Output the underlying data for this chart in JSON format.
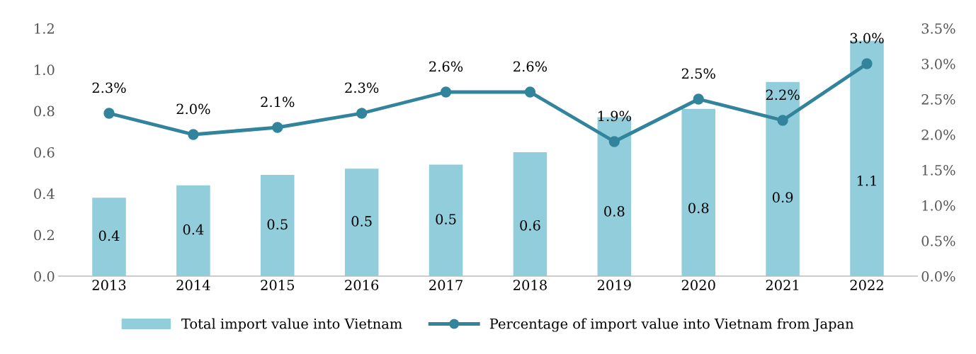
{
  "chart_data": {
    "type": "bar",
    "categories": [
      "2013",
      "2014",
      "2015",
      "2016",
      "2017",
      "2018",
      "2019",
      "2020",
      "2021",
      "2022"
    ],
    "series": [
      {
        "name": "Total import value into Vietnam",
        "color": "#92cddc",
        "values": [
          0.38,
          0.44,
          0.49,
          0.52,
          0.54,
          0.6,
          0.77,
          0.81,
          0.94,
          1.14
        ],
        "value_labels": [
          "0.4",
          "0.4",
          "0.5",
          "0.5",
          "0.5",
          "0.6",
          "0.8",
          "0.8",
          "0.9",
          "1.1"
        ]
      },
      {
        "name": "Percentage of import value into Vietnam from Japan",
        "type": "line",
        "axis": "y2",
        "color": "#31849b",
        "marker": "circle",
        "values": [
          2.3,
          2.0,
          2.1,
          2.3,
          2.6,
          2.6,
          1.9,
          2.5,
          2.2,
          3.0
        ],
        "value_labels": [
          "2.3%",
          "2.0%",
          "2.1%",
          "2.3%",
          "2.6%",
          "2.6%",
          "1.9%",
          "2.5%",
          "2.2%",
          "3.0%"
        ]
      }
    ],
    "ylim": [
      0,
      1.2
    ],
    "yticks": [
      {
        "value": 0,
        "label": "0.0"
      },
      0.2,
      0.4,
      0.6,
      0.8,
      {
        "value": 1,
        "label": "1.0"
      },
      1.2
    ],
    "y2lim": [
      0,
      3.5
    ],
    "y2ticks": [
      {
        "value": 0,
        "label": "0.0%"
      },
      {
        "value": 0.5,
        "label": "0.5%"
      },
      {
        "value": 1,
        "label": "1.0%"
      },
      {
        "value": 1.5,
        "label": "1.5%"
      },
      {
        "value": 2,
        "label": "2.0%"
      },
      {
        "value": 2.5,
        "label": "2.5%"
      },
      {
        "value": 3,
        "label": "3.0%"
      },
      {
        "value": 3.5,
        "label": "3.5%"
      }
    ],
    "grid": false,
    "legend": "bottom"
  }
}
